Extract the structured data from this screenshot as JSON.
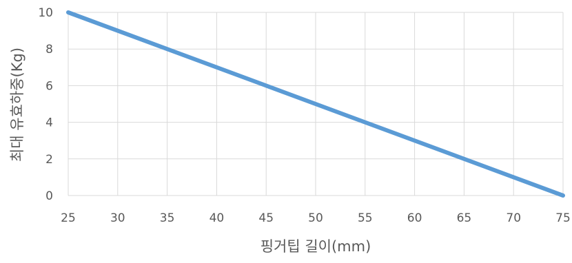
{
  "chart_data": {
    "type": "line",
    "title": "",
    "xlabel": "핑거팁 길이(mm)",
    "ylabel": "최대 유효하중(Kg)",
    "x_ticks": [
      "25",
      "30",
      "35",
      "40",
      "45",
      "50",
      "55",
      "60",
      "65",
      "70",
      "75"
    ],
    "y_ticks": [
      "0",
      "2",
      "4",
      "6",
      "8",
      "10"
    ],
    "xlim": [
      25,
      75
    ],
    "ylim": [
      0,
      10
    ],
    "grid": true,
    "legend": "none",
    "series": [
      {
        "color": "#5b9bd5",
        "x": [
          25,
          75
        ],
        "y": [
          10,
          0
        ]
      }
    ],
    "colors": {
      "grid": "#d9d9d9",
      "text": "#595959",
      "line": "#5b9bd5"
    }
  }
}
